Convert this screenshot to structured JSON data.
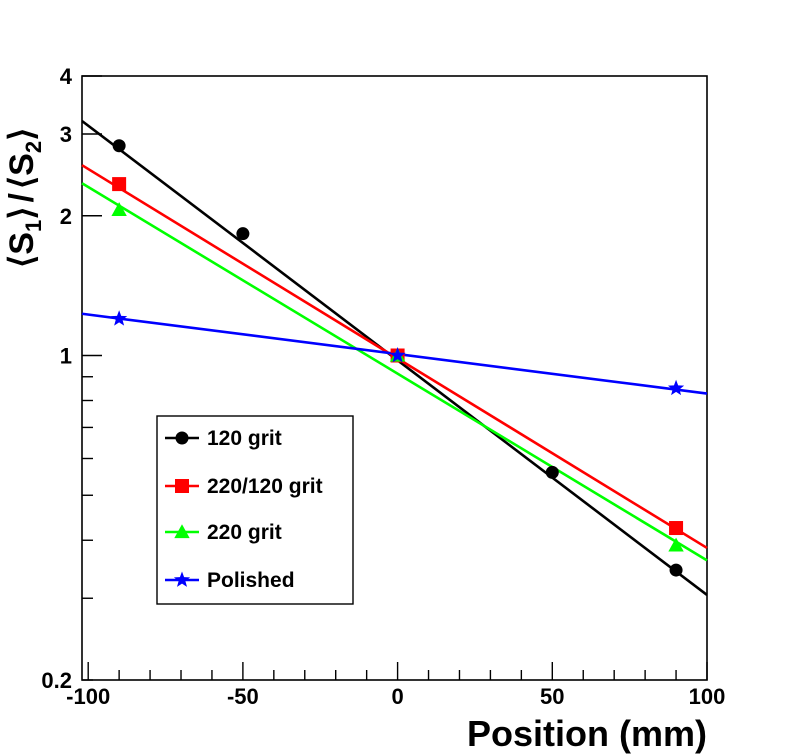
{
  "chart_data": {
    "type": "line",
    "xlabel": "Position (mm)",
    "ylabel": {
      "left_bracket": "⟨",
      "right_bracket": "⟩",
      "slash": "/",
      "s1_main": "S",
      "s1_sub": "1",
      "s2_main": "S",
      "s2_sub": "2"
    },
    "xlim": [
      -102,
      100
    ],
    "ylim": [
      0.2,
      4
    ],
    "yscale": "log",
    "x_ticks": [
      {
        "value": -100,
        "label": "-100"
      },
      {
        "value": -50,
        "label": "-50"
      },
      {
        "value": 0,
        "label": "0"
      },
      {
        "value": 50,
        "label": "50"
      },
      {
        "value": 100,
        "label": "100"
      }
    ],
    "y_ticks": [
      {
        "value": 0.2,
        "label": "0.2"
      },
      {
        "value": 1,
        "label": "1"
      },
      {
        "value": 2,
        "label": "2"
      },
      {
        "value": 3,
        "label": "3"
      },
      {
        "value": 4,
        "label": "4"
      }
    ],
    "legend_position": "center-left",
    "series": [
      {
        "name": "120 grit",
        "color": "#000000",
        "marker": "circle",
        "points": [
          [
            -90,
            2.83
          ],
          [
            -50,
            1.83
          ],
          [
            0,
            1.0
          ],
          [
            50,
            0.56
          ],
          [
            90,
            0.345
          ]
        ],
        "fit": {
          "x0": -102,
          "y0": 3.2,
          "x1": 100,
          "y1": 0.305
        }
      },
      {
        "name": "220/120 grit",
        "color": "#ff0000",
        "marker": "square",
        "points": [
          [
            -90,
            2.34
          ],
          [
            0,
            1.0
          ],
          [
            90,
            0.425
          ]
        ],
        "fit": {
          "x0": -102,
          "y0": 2.57,
          "x1": 100,
          "y1": 0.385
        }
      },
      {
        "name": "220 grit",
        "color": "#00ff00",
        "marker": "triangle",
        "points": [
          [
            -90,
            2.06
          ],
          [
            0,
            1.0
          ],
          [
            90,
            0.39
          ]
        ],
        "fit": {
          "x0": -102,
          "y0": 2.35,
          "x1": 100,
          "y1": 0.362
        }
      },
      {
        "name": "Polished",
        "color": "#0000ff",
        "marker": "star",
        "points": [
          [
            -90,
            1.2
          ],
          [
            0,
            1.0
          ],
          [
            90,
            0.85
          ]
        ],
        "fit": {
          "x0": -102,
          "y0": 1.23,
          "x1": 100,
          "y1": 0.828
        }
      }
    ]
  }
}
